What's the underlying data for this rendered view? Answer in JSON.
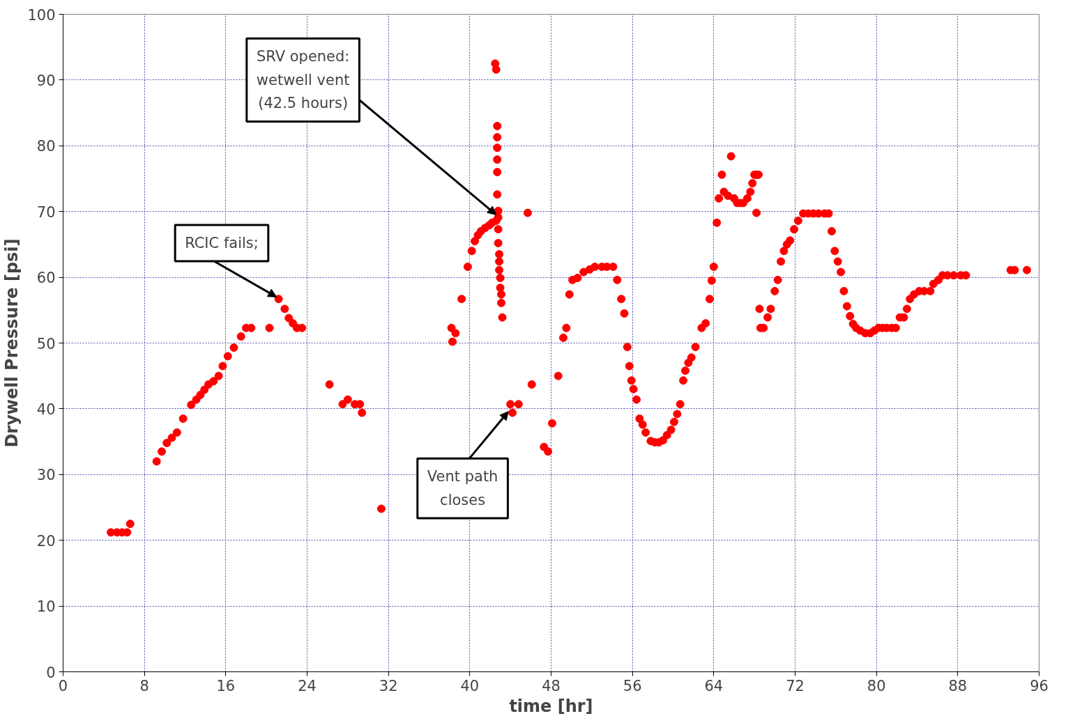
{
  "chart_data": {
    "type": "scatter",
    "xlabel": "time [hr]",
    "ylabel": "Drywell Pressure [psi]",
    "xlim": [
      0,
      96
    ],
    "xticks": [
      0,
      8,
      16,
      24,
      32,
      40,
      48,
      56,
      64,
      72,
      80,
      88,
      96
    ],
    "ylim": [
      0,
      100
    ],
    "yticks": [
      0,
      10,
      20,
      30,
      40,
      50,
      60,
      70,
      80,
      90,
      100
    ],
    "grid": true,
    "marker": "circle",
    "series": [
      {
        "color": "#ff0000",
        "x": [
          4.7,
          5.3,
          5.8,
          6.3,
          6.6,
          9.2,
          9.7,
          10.2,
          10.7,
          11.2,
          11.8,
          12.6,
          13.1,
          13.5,
          13.9,
          14.3,
          14.8,
          15.3,
          15.7,
          16.2,
          16.8,
          17.5,
          18,
          18.5,
          20.3,
          21.2,
          21.8,
          22.2,
          22.6,
          23,
          23.5,
          26.2,
          27.5,
          28,
          28.7,
          29.2,
          29.4,
          31.3,
          38.2,
          38.6,
          38.3,
          39.2,
          39.8,
          40.2,
          40.5,
          40.8,
          41.1,
          41.5,
          41.9,
          42.2,
          42.6,
          42.5,
          42.6,
          42.7,
          42.7,
          42.7,
          42.7,
          42.7,
          42.7,
          42.8,
          42.8,
          42.8,
          42.8,
          42.9,
          42.9,
          42.9,
          43,
          43,
          43.1,
          43.1,
          43.2,
          44,
          44.2,
          44.8,
          46.1,
          45.7,
          47.3,
          47.7,
          48.1,
          48.7,
          49.2,
          49.5,
          49.8,
          50.1,
          50.6,
          51.2,
          51.8,
          52.3,
          53,
          53.5,
          54.1,
          54.5,
          54.9,
          55.2,
          55.5,
          55.7,
          55.9,
          56.1,
          56.4,
          56.7,
          57,
          57.3,
          57.8,
          58.2,
          58.6,
          59,
          59.4,
          59.8,
          60.1,
          60.4,
          60.7,
          61,
          61.2,
          61.5,
          61.8,
          62.2,
          62.8,
          63.2,
          63.6,
          63.8,
          64,
          64.3,
          64.5,
          64.8,
          65,
          65.4,
          65.7,
          66,
          66.3,
          66.6,
          66.9,
          67.3,
          67.6,
          67.8,
          68.0,
          68.2,
          68.4,
          68.2,
          68.5,
          68.6,
          68.9,
          69.3,
          69.6,
          70.0,
          70.3,
          70.6,
          70.9,
          71.2,
          71.5,
          71.9,
          72.3,
          72.8,
          73.3,
          73.8,
          74.3,
          74.9,
          75.3,
          75.6,
          75.9,
          76.2,
          76.5,
          76.8,
          77.1,
          77.4,
          77.7,
          78,
          78.4,
          78.9,
          79.4,
          79.8,
          80.2,
          80.6,
          81,
          81.5,
          81.9,
          82.3,
          82.7,
          83,
          83.3,
          83.7,
          84.2,
          84.7,
          85.3,
          85.6,
          86.1,
          86.5,
          87,
          87.6,
          88.3,
          88.8,
          93.2,
          93.6,
          94.8
        ],
        "values": [
          21.2,
          21.2,
          21.2,
          21.2,
          22.5,
          32,
          33.5,
          34.8,
          35.6,
          36.4,
          38.5,
          40.6,
          41.4,
          42.1,
          42.9,
          43.7,
          44.2,
          45,
          46.5,
          48,
          49.3,
          51,
          52.3,
          52.3,
          52.3,
          56.7,
          55.2,
          53.8,
          53,
          52.3,
          52.3,
          43.7,
          40.7,
          41.4,
          40.7,
          40.7,
          39.4,
          24.8,
          52.3,
          51.5,
          50.2,
          56.7,
          61.6,
          64,
          65.5,
          66.4,
          67,
          67.5,
          67.9,
          68.3,
          68.6,
          92.5,
          91.6,
          83,
          81.3,
          79.7,
          77.9,
          76,
          72.6,
          70.1,
          69.1,
          67.3,
          65.2,
          63.5,
          62.4,
          61.1,
          59.9,
          58.4,
          57.4,
          56.1,
          53.9,
          40.7,
          39.4,
          40.7,
          43.7,
          69.8,
          34.2,
          33.5,
          37.8,
          45,
          50.8,
          52.3,
          57.4,
          59.6,
          59.9,
          60.8,
          61.2,
          61.6,
          61.6,
          61.6,
          61.6,
          59.6,
          56.7,
          54.5,
          49.4,
          46.5,
          44.3,
          43,
          41.4,
          38.5,
          37.6,
          36.4,
          35.1,
          34.9,
          34.9,
          35.2,
          36,
          36.8,
          38,
          39.2,
          40.7,
          44.3,
          45.8,
          47,
          47.8,
          49.4,
          52.3,
          53,
          56.7,
          59.5,
          61.6,
          68.3,
          72,
          75.6,
          73,
          72.4,
          78.4,
          72,
          71.3,
          71.3,
          71.3,
          72,
          73,
          74.3,
          75.6,
          75.6,
          75.6,
          69.8,
          55.2,
          52.3,
          52.3,
          53.9,
          55.2,
          57.9,
          59.6,
          62.4,
          64,
          65,
          65.6,
          67.3,
          68.6,
          69.7,
          69.7,
          69.7,
          69.7,
          69.7,
          69.7,
          67,
          64,
          62.4,
          60.8,
          57.9,
          55.6,
          54.1,
          52.9,
          52.3,
          51.9,
          51.5,
          51.5,
          51.9,
          52.3,
          52.3,
          52.3,
          52.3,
          52.3,
          53.9,
          53.9,
          55.2,
          56.7,
          57.4,
          57.9,
          57.9,
          57.9,
          59,
          59.6,
          60.3,
          60.3,
          60.3,
          60.3,
          60.3,
          61.1,
          61.1,
          61.1
        ]
      }
    ],
    "annotations": [
      {
        "text": "SRV opened: wetwell vent (42.5 hours)",
        "x": 42.6,
        "y": 69.5
      },
      {
        "text": "RCIC fails;",
        "x": 21.0,
        "y": 57.0
      },
      {
        "text": "Vent path closes",
        "x": 43.8,
        "y": 39.6
      }
    ]
  }
}
